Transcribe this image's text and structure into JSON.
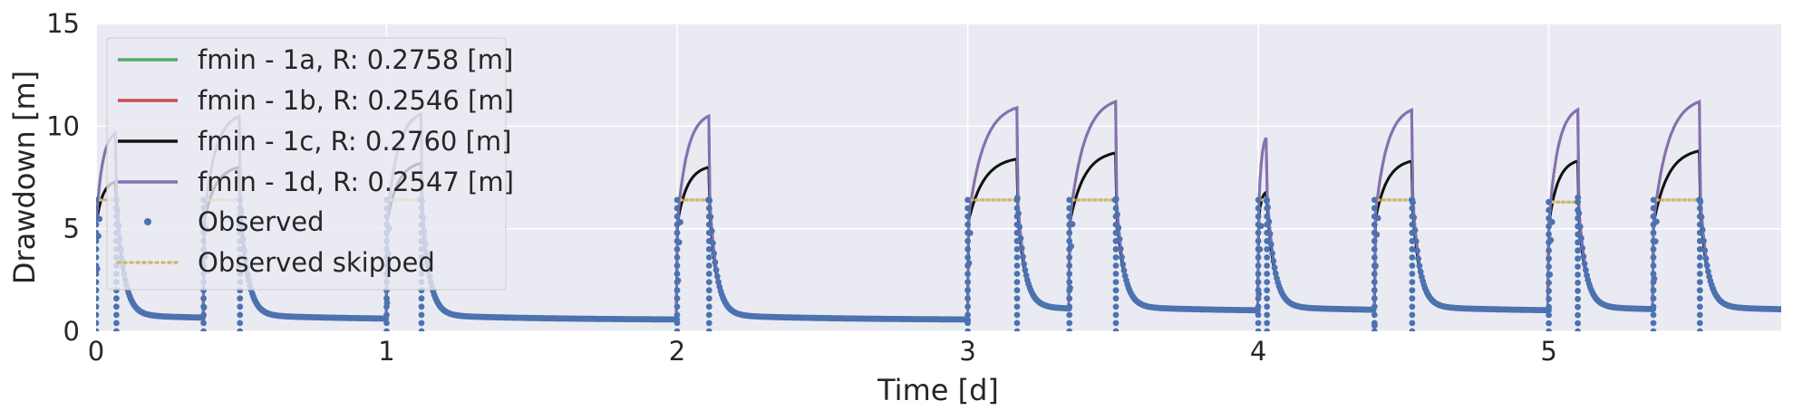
{
  "chart_data": {
    "type": "line",
    "xlabel": "Time [d]",
    "ylabel": "Drawdown [m]",
    "xlim": [
      0,
      5.8
    ],
    "ylim": [
      0,
      15
    ],
    "xticks": [
      0,
      1,
      2,
      3,
      4,
      5
    ],
    "yticks": [
      0,
      5,
      10,
      15
    ],
    "grid": true,
    "legend_position": "upper-left",
    "colors": {
      "background": "#eaeaf2",
      "grid": "#ffffff",
      "text": "#262626",
      "fmin_1a": "#55a868",
      "fmin_1b": "#c44e52",
      "fmin_1c": "#111111",
      "fmin_1d": "#8172b2",
      "observed": "#4c72b0",
      "observed_skipped": "#ccb974"
    },
    "pumping_periods": [
      {
        "start": 0.0,
        "end": 0.07,
        "observed_plateau": 6.4,
        "peak_1c": 7.3,
        "peak_1d": 9.7
      },
      {
        "start": 0.37,
        "end": 0.495,
        "observed_plateau": 6.4,
        "peak_1c": 8.0,
        "peak_1d": 10.5
      },
      {
        "start": 1.0,
        "end": 1.12,
        "observed_plateau": 6.4,
        "peak_1c": 8.2,
        "peak_1d": 10.6
      },
      {
        "start": 2.0,
        "end": 2.11,
        "observed_plateau": 6.4,
        "peak_1c": 8.0,
        "peak_1d": 10.5
      },
      {
        "start": 3.0,
        "end": 3.17,
        "observed_plateau": 6.4,
        "peak_1c": 8.4,
        "peak_1d": 10.9
      },
      {
        "start": 3.35,
        "end": 3.51,
        "observed_plateau": 6.4,
        "peak_1c": 8.7,
        "peak_1d": 11.2
      },
      {
        "start": 4.0,
        "end": 4.03,
        "observed_plateau": 6.4,
        "peak_1c": 6.8,
        "peak_1d": 9.5
      },
      {
        "start": 4.4,
        "end": 4.53,
        "observed_plateau": 6.4,
        "peak_1c": 8.3,
        "peak_1d": 10.8
      },
      {
        "start": 5.0,
        "end": 5.1,
        "observed_plateau": 6.3,
        "peak_1c": 8.3,
        "peak_1d": 10.8
      },
      {
        "start": 5.36,
        "end": 5.52,
        "observed_plateau": 6.4,
        "peak_1c": 8.8,
        "peak_1d": 11.2
      }
    ],
    "series": [
      {
        "name": "fmin - 1a, R: 0.2758 [m]",
        "key": "fmin_1a",
        "style": "line"
      },
      {
        "name": "fmin - 1b, R: 0.2546 [m]",
        "key": "fmin_1b",
        "style": "line"
      },
      {
        "name": "fmin - 1c, R: 0.2760 [m]",
        "key": "fmin_1c",
        "style": "line"
      },
      {
        "name": "fmin - 1d, R: 0.2547 [m]",
        "key": "fmin_1d",
        "style": "line"
      },
      {
        "name": "Observed",
        "key": "observed",
        "style": "dots"
      },
      {
        "name": "Observed skipped",
        "key": "observed_skipped",
        "style": "dotted-line"
      }
    ]
  }
}
